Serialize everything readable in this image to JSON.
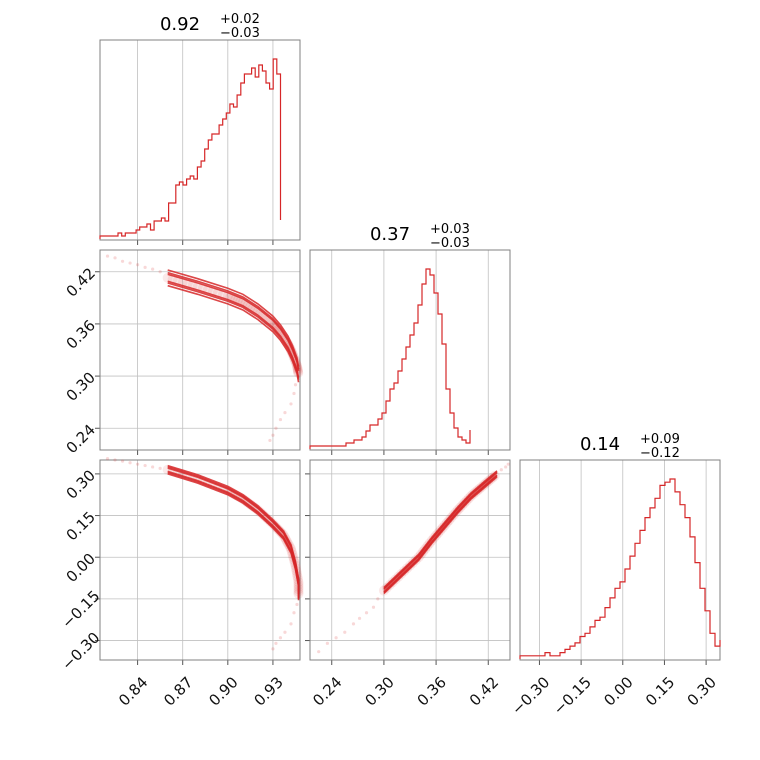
{
  "chart_data": {
    "type": "corner",
    "color": "#d62728",
    "parameters": [
      {
        "title": {
          "median": "0.92",
          "plus": "+0.02",
          "minus": "−0.03"
        },
        "range": [
          0.815,
          0.948
        ],
        "ticks": [
          0.84,
          0.87,
          0.9,
          0.93
        ],
        "tick_labels": [
          "0.84",
          "0.87",
          "0.90",
          "0.93"
        ],
        "histogram": {
          "edges_start": 0.815,
          "bin_width": 0.0024,
          "counts": [
            1,
            1,
            1,
            1,
            1,
            2,
            1,
            2,
            2,
            2,
            3,
            4,
            4,
            5,
            3,
            6,
            6,
            7,
            6,
            12,
            12,
            18,
            19,
            18,
            20,
            21,
            20,
            24,
            26,
            30,
            33,
            35,
            35,
            38,
            40,
            42,
            45,
            44,
            48,
            52,
            55,
            55,
            57,
            54,
            58,
            56,
            52,
            50,
            60,
            55
          ]
        }
      },
      {
        "title": {
          "median": "0.37",
          "plus": "+0.03",
          "minus": "−0.03"
        },
        "range": [
          0.215,
          0.445
        ],
        "ticks": [
          0.24,
          0.3,
          0.36,
          0.42
        ],
        "tick_labels": [
          "0.24",
          "0.30",
          "0.36",
          "0.42"
        ],
        "histogram": {
          "edges_start": 0.215,
          "bin_width": 0.0046,
          "counts": [
            1,
            1,
            1,
            1,
            1,
            1,
            1,
            1,
            1,
            2,
            2,
            3,
            3,
            4,
            6,
            8,
            8,
            10,
            12,
            16,
            20,
            22,
            26,
            30,
            34,
            38,
            42,
            48,
            55,
            60,
            58,
            52,
            45,
            35,
            20,
            12,
            7,
            4,
            3,
            2
          ]
        }
      },
      {
        "title": {
          "median": "0.14",
          "plus": "+0.09",
          "minus": "−0.12"
        },
        "range": [
          -0.37,
          0.35
        ],
        "ticks": [
          -0.3,
          -0.15,
          0.0,
          0.15,
          0.3
        ],
        "tick_labels": [
          "−0.30",
          "−0.15",
          "0.00",
          "0.15",
          "0.30"
        ],
        "histogram": {
          "edges_start": -0.37,
          "bin_width": 0.018,
          "counts": [
            1,
            1,
            1,
            1,
            1,
            2,
            1,
            1,
            2,
            3,
            4,
            5,
            7,
            8,
            10,
            12,
            13,
            16,
            19,
            22,
            24,
            28,
            32,
            36,
            40,
            44,
            47,
            50,
            54,
            55,
            56,
            52,
            48,
            44,
            38,
            30,
            22,
            15,
            8,
            4
          ]
        }
      }
    ],
    "pairs": [
      {
        "row": 1,
        "col": 0,
        "contour_center": [
          [
            0.86,
            0.413
          ],
          [
            0.88,
            0.403
          ],
          [
            0.9,
            0.392
          ],
          [
            0.91,
            0.385
          ],
          [
            0.92,
            0.374
          ],
          [
            0.93,
            0.36
          ],
          [
            0.935,
            0.35
          ],
          [
            0.94,
            0.337
          ],
          [
            0.943,
            0.326
          ],
          [
            0.946,
            0.312
          ],
          [
            0.947,
            0.302
          ]
        ],
        "contour_widths": [
          0.004,
          0.006,
          0.009
        ],
        "scatter": [
          [
            0.82,
            0.438
          ],
          [
            0.825,
            0.436
          ],
          [
            0.83,
            0.432
          ],
          [
            0.835,
            0.43
          ],
          [
            0.84,
            0.428
          ],
          [
            0.845,
            0.425
          ],
          [
            0.85,
            0.423
          ],
          [
            0.855,
            0.42
          ],
          [
            0.945,
            0.29
          ],
          [
            0.944,
            0.28
          ],
          [
            0.942,
            0.268
          ],
          [
            0.938,
            0.258
          ],
          [
            0.935,
            0.25
          ],
          [
            0.932,
            0.24
          ],
          [
            0.93,
            0.232
          ],
          [
            0.928,
            0.226
          ]
        ]
      },
      {
        "row": 2,
        "col": 0,
        "contour_center": [
          [
            0.86,
            0.315
          ],
          [
            0.88,
            0.282
          ],
          [
            0.9,
            0.24
          ],
          [
            0.91,
            0.21
          ],
          [
            0.92,
            0.17
          ],
          [
            0.93,
            0.12
          ],
          [
            0.937,
            0.08
          ],
          [
            0.942,
            0.03
          ],
          [
            0.945,
            -0.03
          ],
          [
            0.947,
            -0.09
          ],
          [
            0.947,
            -0.14
          ]
        ],
        "contour_widths": [
          0.006,
          0.01,
          0.015
        ],
        "scatter": [
          [
            0.82,
            0.355
          ],
          [
            0.825,
            0.35
          ],
          [
            0.83,
            0.346
          ],
          [
            0.835,
            0.34
          ],
          [
            0.84,
            0.335
          ],
          [
            0.845,
            0.33
          ],
          [
            0.85,
            0.325
          ],
          [
            0.855,
            0.32
          ],
          [
            0.946,
            -0.17
          ],
          [
            0.944,
            -0.2
          ],
          [
            0.942,
            -0.24
          ],
          [
            0.938,
            -0.27
          ],
          [
            0.935,
            -0.29
          ],
          [
            0.932,
            -0.31
          ],
          [
            0.93,
            -0.33
          ]
        ]
      },
      {
        "row": 2,
        "col": 1,
        "contour_center": [
          [
            0.3,
            -0.12
          ],
          [
            0.32,
            -0.06
          ],
          [
            0.34,
            0.0
          ],
          [
            0.355,
            0.06
          ],
          [
            0.37,
            0.115
          ],
          [
            0.385,
            0.17
          ],
          [
            0.4,
            0.22
          ],
          [
            0.415,
            0.26
          ],
          [
            0.43,
            0.3
          ]
        ],
        "contour_widths": [
          0.004,
          0.007,
          0.011
        ],
        "scatter": [
          [
            0.225,
            -0.34
          ],
          [
            0.235,
            -0.31
          ],
          [
            0.245,
            -0.29
          ],
          [
            0.255,
            -0.27
          ],
          [
            0.265,
            -0.24
          ],
          [
            0.272,
            -0.22
          ],
          [
            0.28,
            -0.2
          ],
          [
            0.288,
            -0.18
          ],
          [
            0.293,
            -0.15
          ],
          [
            0.435,
            0.315
          ],
          [
            0.44,
            0.325
          ],
          [
            0.443,
            0.335
          ]
        ]
      }
    ]
  }
}
